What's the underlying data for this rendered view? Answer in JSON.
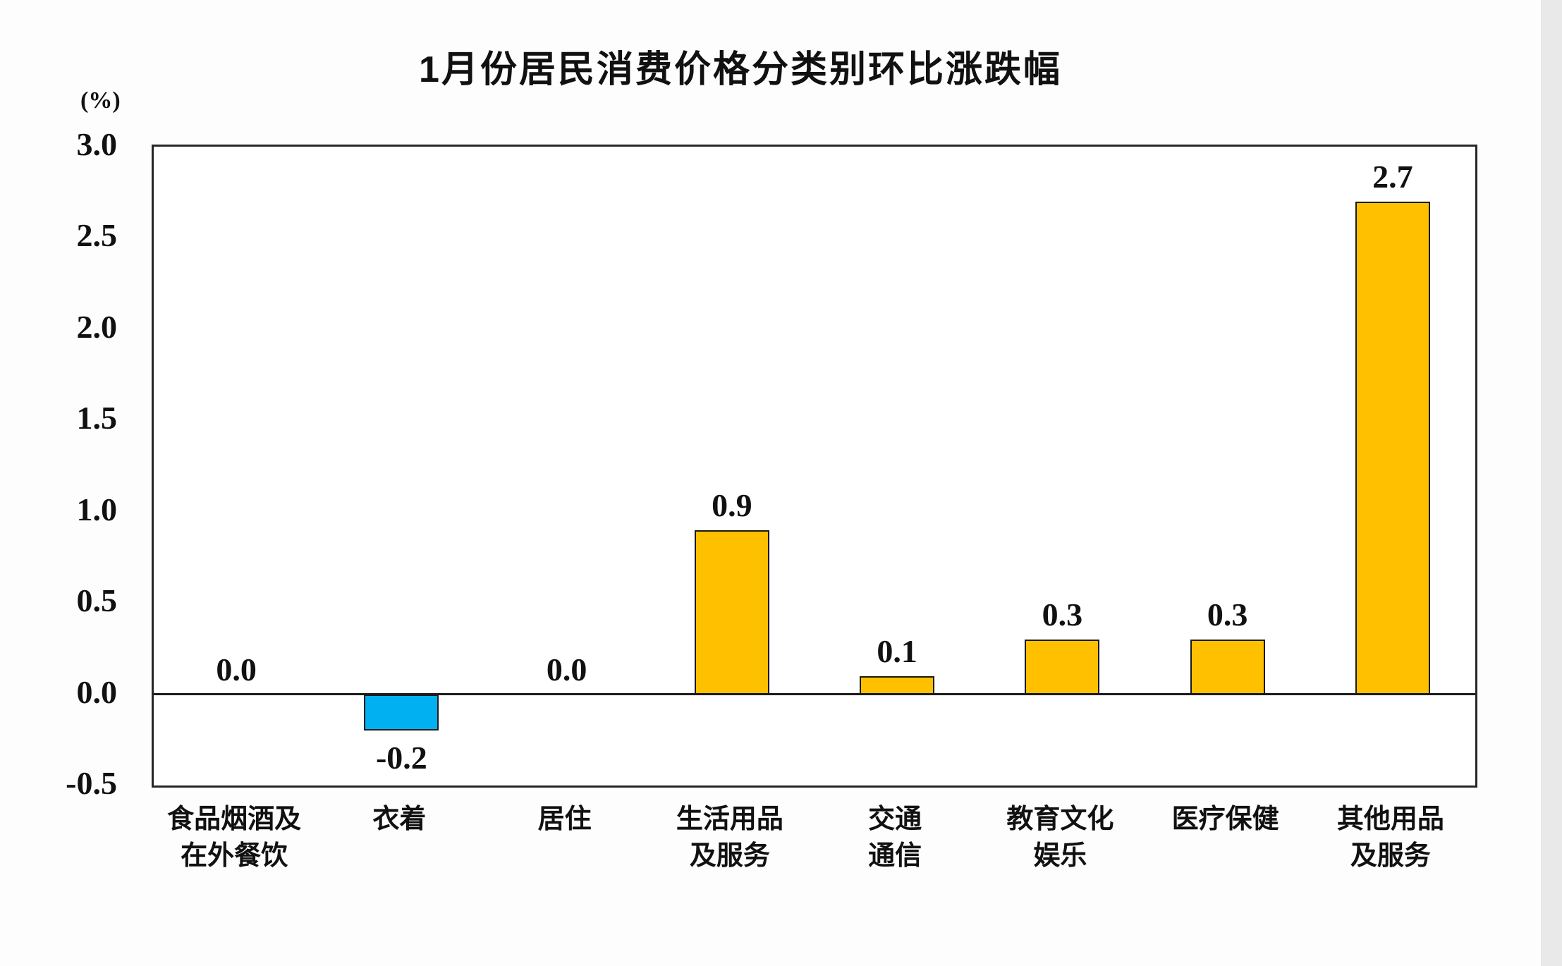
{
  "page": {
    "background": "#fdfdfd"
  },
  "chart_data": {
    "type": "bar",
    "title": "1月份居民消费价格分类别环比涨跌幅",
    "ylabel": "(%)",
    "xlabel": "",
    "ylim": [
      -0.5,
      3.0
    ],
    "yticks": [
      "3.0",
      "2.5",
      "2.0",
      "1.5",
      "1.0",
      "0.5",
      "0.0",
      "-0.5"
    ],
    "grid": false,
    "legend": false,
    "categories": [
      "食品烟酒及\n在外餐饮",
      "衣着",
      "居住",
      "生活用品\n及服务",
      "交通\n通信",
      "教育文化\n娱乐",
      "医疗保健",
      "其他用品\n及服务"
    ],
    "values": [
      0.0,
      -0.2,
      0.0,
      0.9,
      0.1,
      0.3,
      0.3,
      2.7
    ],
    "value_labels": [
      "0.0",
      "-0.2",
      "0.0",
      "0.9",
      "0.1",
      "0.3",
      "0.3",
      "2.7"
    ],
    "colors": {
      "positive_bar": "#FFC000",
      "negative_bar": "#00B0F0",
      "bar_border": "#1a1a1a",
      "axis": "#262626",
      "text": "#111111"
    }
  }
}
